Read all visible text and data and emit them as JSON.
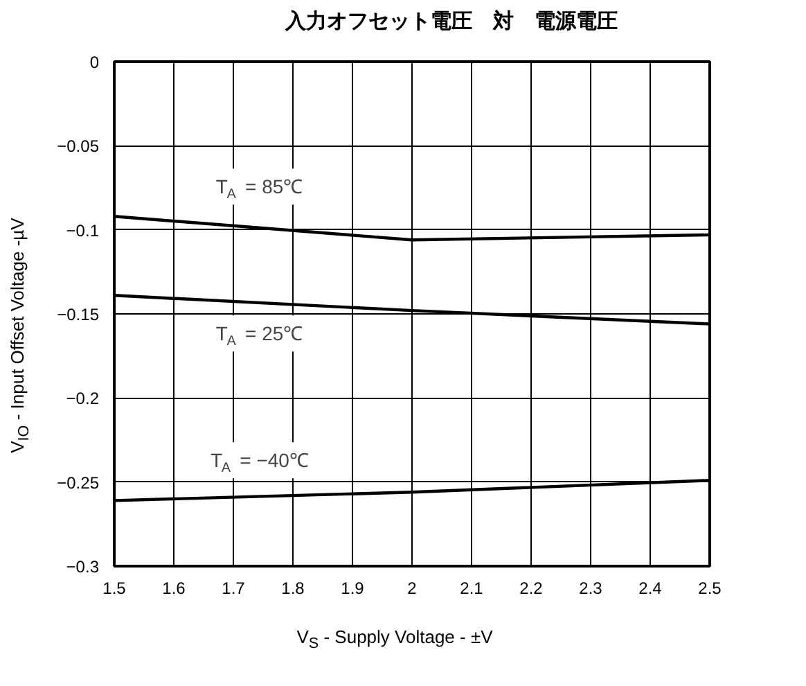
{
  "chart_data": {
    "type": "line",
    "title": "入力オフセット電圧　対　電源電圧",
    "xlabel": "V$_{S}$ - Supply Voltage - ±V",
    "ylabel": "V$_{IO}$ - Input Offset Voltage -µV",
    "series": [
      {
        "color": "#000000",
        "x": [
          1.5,
          2.0,
          2.5
        ],
        "values": [
          -0.092,
          -0.106,
          -0.103
        ]
      },
      {
        "color": "#000000",
        "x": [
          1.5,
          2.0,
          2.5
        ],
        "values": [
          -0.139,
          -0.148,
          -0.156
        ]
      },
      {
        "color": "#000000",
        "x": [
          1.5,
          2.0,
          2.5
        ],
        "values": [
          -0.261,
          -0.256,
          -0.249
        ]
      }
    ],
    "annotations": [
      "T$_{A}$ = 85℃",
      "T$_{A}$ = 25℃",
      "T$_{A}$ = −40℃"
    ],
    "xlim": [
      1.5,
      2.5
    ],
    "ylim": [
      -0.3,
      0
    ],
    "xticks": [
      1.5,
      1.6,
      1.7,
      1.8,
      1.9,
      2,
      2.1,
      2.2,
      2.3,
      2.4,
      2.5
    ],
    "yticks": [
      0,
      {
        "value": -0.05,
        "label": "−0.05"
      },
      {
        "value": -0.1,
        "label": "−0.1"
      },
      {
        "value": -0.15,
        "label": "−0.15"
      },
      {
        "value": -0.2,
        "label": "−0.2"
      },
      {
        "value": -0.25,
        "label": "−0.25"
      },
      {
        "value": -0.3,
        "label": "−0.3"
      }
    ],
    "grid": true,
    "marker": "none",
    "line_style": "solid"
  }
}
